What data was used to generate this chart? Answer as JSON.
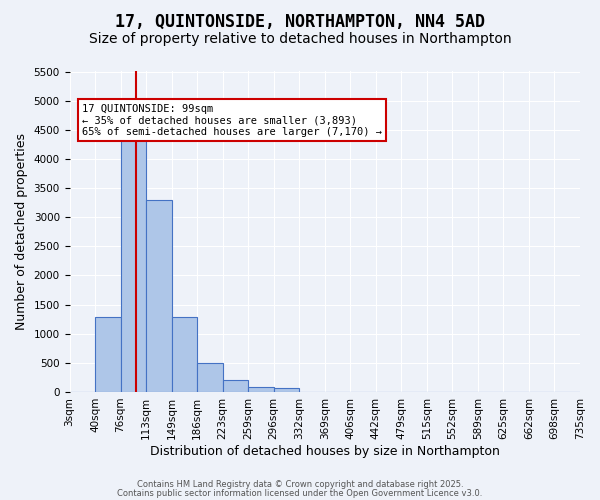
{
  "title": "17, QUINTONSIDE, NORTHAMPTON, NN4 5AD",
  "subtitle": "Size of property relative to detached houses in Northampton",
  "xlabel": "Distribution of detached houses by size in Northampton",
  "ylabel": "Number of detached properties",
  "bin_labels": [
    "3sqm",
    "40sqm",
    "76sqm",
    "113sqm",
    "149sqm",
    "186sqm",
    "223sqm",
    "259sqm",
    "296sqm",
    "332sqm",
    "369sqm",
    "406sqm",
    "442sqm",
    "479sqm",
    "515sqm",
    "552sqm",
    "589sqm",
    "625sqm",
    "662sqm",
    "698sqm",
    "735sqm"
  ],
  "bar_values": [
    0,
    1280,
    4380,
    3300,
    1280,
    500,
    200,
    90,
    60,
    0,
    0,
    0,
    0,
    0,
    0,
    0,
    0,
    0,
    0,
    0
  ],
  "bar_color": "#aec6e8",
  "bar_edge_color": "#4472c4",
  "background_color": "#eef2f9",
  "grid_color": "#ffffff",
  "ylim": [
    0,
    5500
  ],
  "yticks": [
    0,
    500,
    1000,
    1500,
    2000,
    2500,
    3000,
    3500,
    4000,
    4500,
    5000,
    5500
  ],
  "vline_color": "#cc0000",
  "annotation_text": "17 QUINTONSIDE: 99sqm\n← 35% of detached houses are smaller (3,893)\n65% of semi-detached houses are larger (7,170) →",
  "footer_line1": "Contains HM Land Registry data © Crown copyright and database right 2025.",
  "footer_line2": "Contains public sector information licensed under the Open Government Licence v3.0.",
  "title_fontsize": 12,
  "subtitle_fontsize": 10,
  "tick_fontsize": 7.5,
  "ylabel_fontsize": 9,
  "xlabel_fontsize": 9,
  "property_sqm": 99,
  "bin_edges": [
    3,
    40,
    76,
    113,
    149,
    186,
    223,
    259,
    296,
    332,
    369,
    406,
    442,
    479,
    515,
    552,
    589,
    625,
    662,
    698,
    735
  ]
}
